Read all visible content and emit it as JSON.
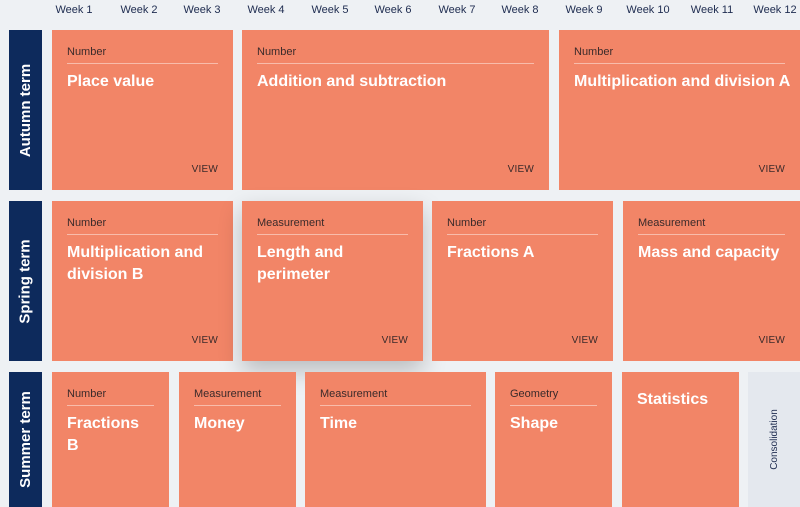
{
  "weeks": [
    "Week 1",
    "Week 2",
    "Week 3",
    "Week 4",
    "Week 5",
    "Week 6",
    "Week 7",
    "Week 8",
    "Week 9",
    "Week 10",
    "Week 11",
    "Week 12"
  ],
  "terms": {
    "autumn": "Autumn term",
    "spring": "Spring term",
    "summer": "Summer term"
  },
  "cards": {
    "place_value": {
      "category": "Number",
      "title": "Place value",
      "view": "VIEW"
    },
    "addition_subtraction": {
      "category": "Number",
      "title": "Addition and subtraction",
      "view": "VIEW"
    },
    "multiplication_division_a": {
      "category": "Number",
      "title": "Multiplication and division A",
      "view": "VIEW"
    },
    "multiplication_division_b": {
      "category": "Number",
      "title_line1": "Multiplication and",
      "title_line2": "division B",
      "view": "VIEW"
    },
    "length_perimeter": {
      "category": "Measurement",
      "title_line1": "Length and",
      "title_line2": "perimeter",
      "view": "VIEW"
    },
    "fractions_a": {
      "category": "Number",
      "title": "Fractions A",
      "view": "VIEW"
    },
    "mass_capacity": {
      "category": "Measurement",
      "title": "Mass and capacity",
      "view": "VIEW"
    },
    "fractions_b": {
      "category": "Number",
      "title": "Fractions B"
    },
    "money": {
      "category": "Measurement",
      "title": "Money"
    },
    "time": {
      "category": "Measurement",
      "title": "Time"
    },
    "shape": {
      "category": "Geometry",
      "title": "Shape"
    },
    "statistics": {
      "title": "Statistics"
    }
  },
  "consolidation": "Consolidation",
  "colors": {
    "card": "#f28567",
    "term": "#0d2a5c",
    "background": "#eef1f4"
  }
}
